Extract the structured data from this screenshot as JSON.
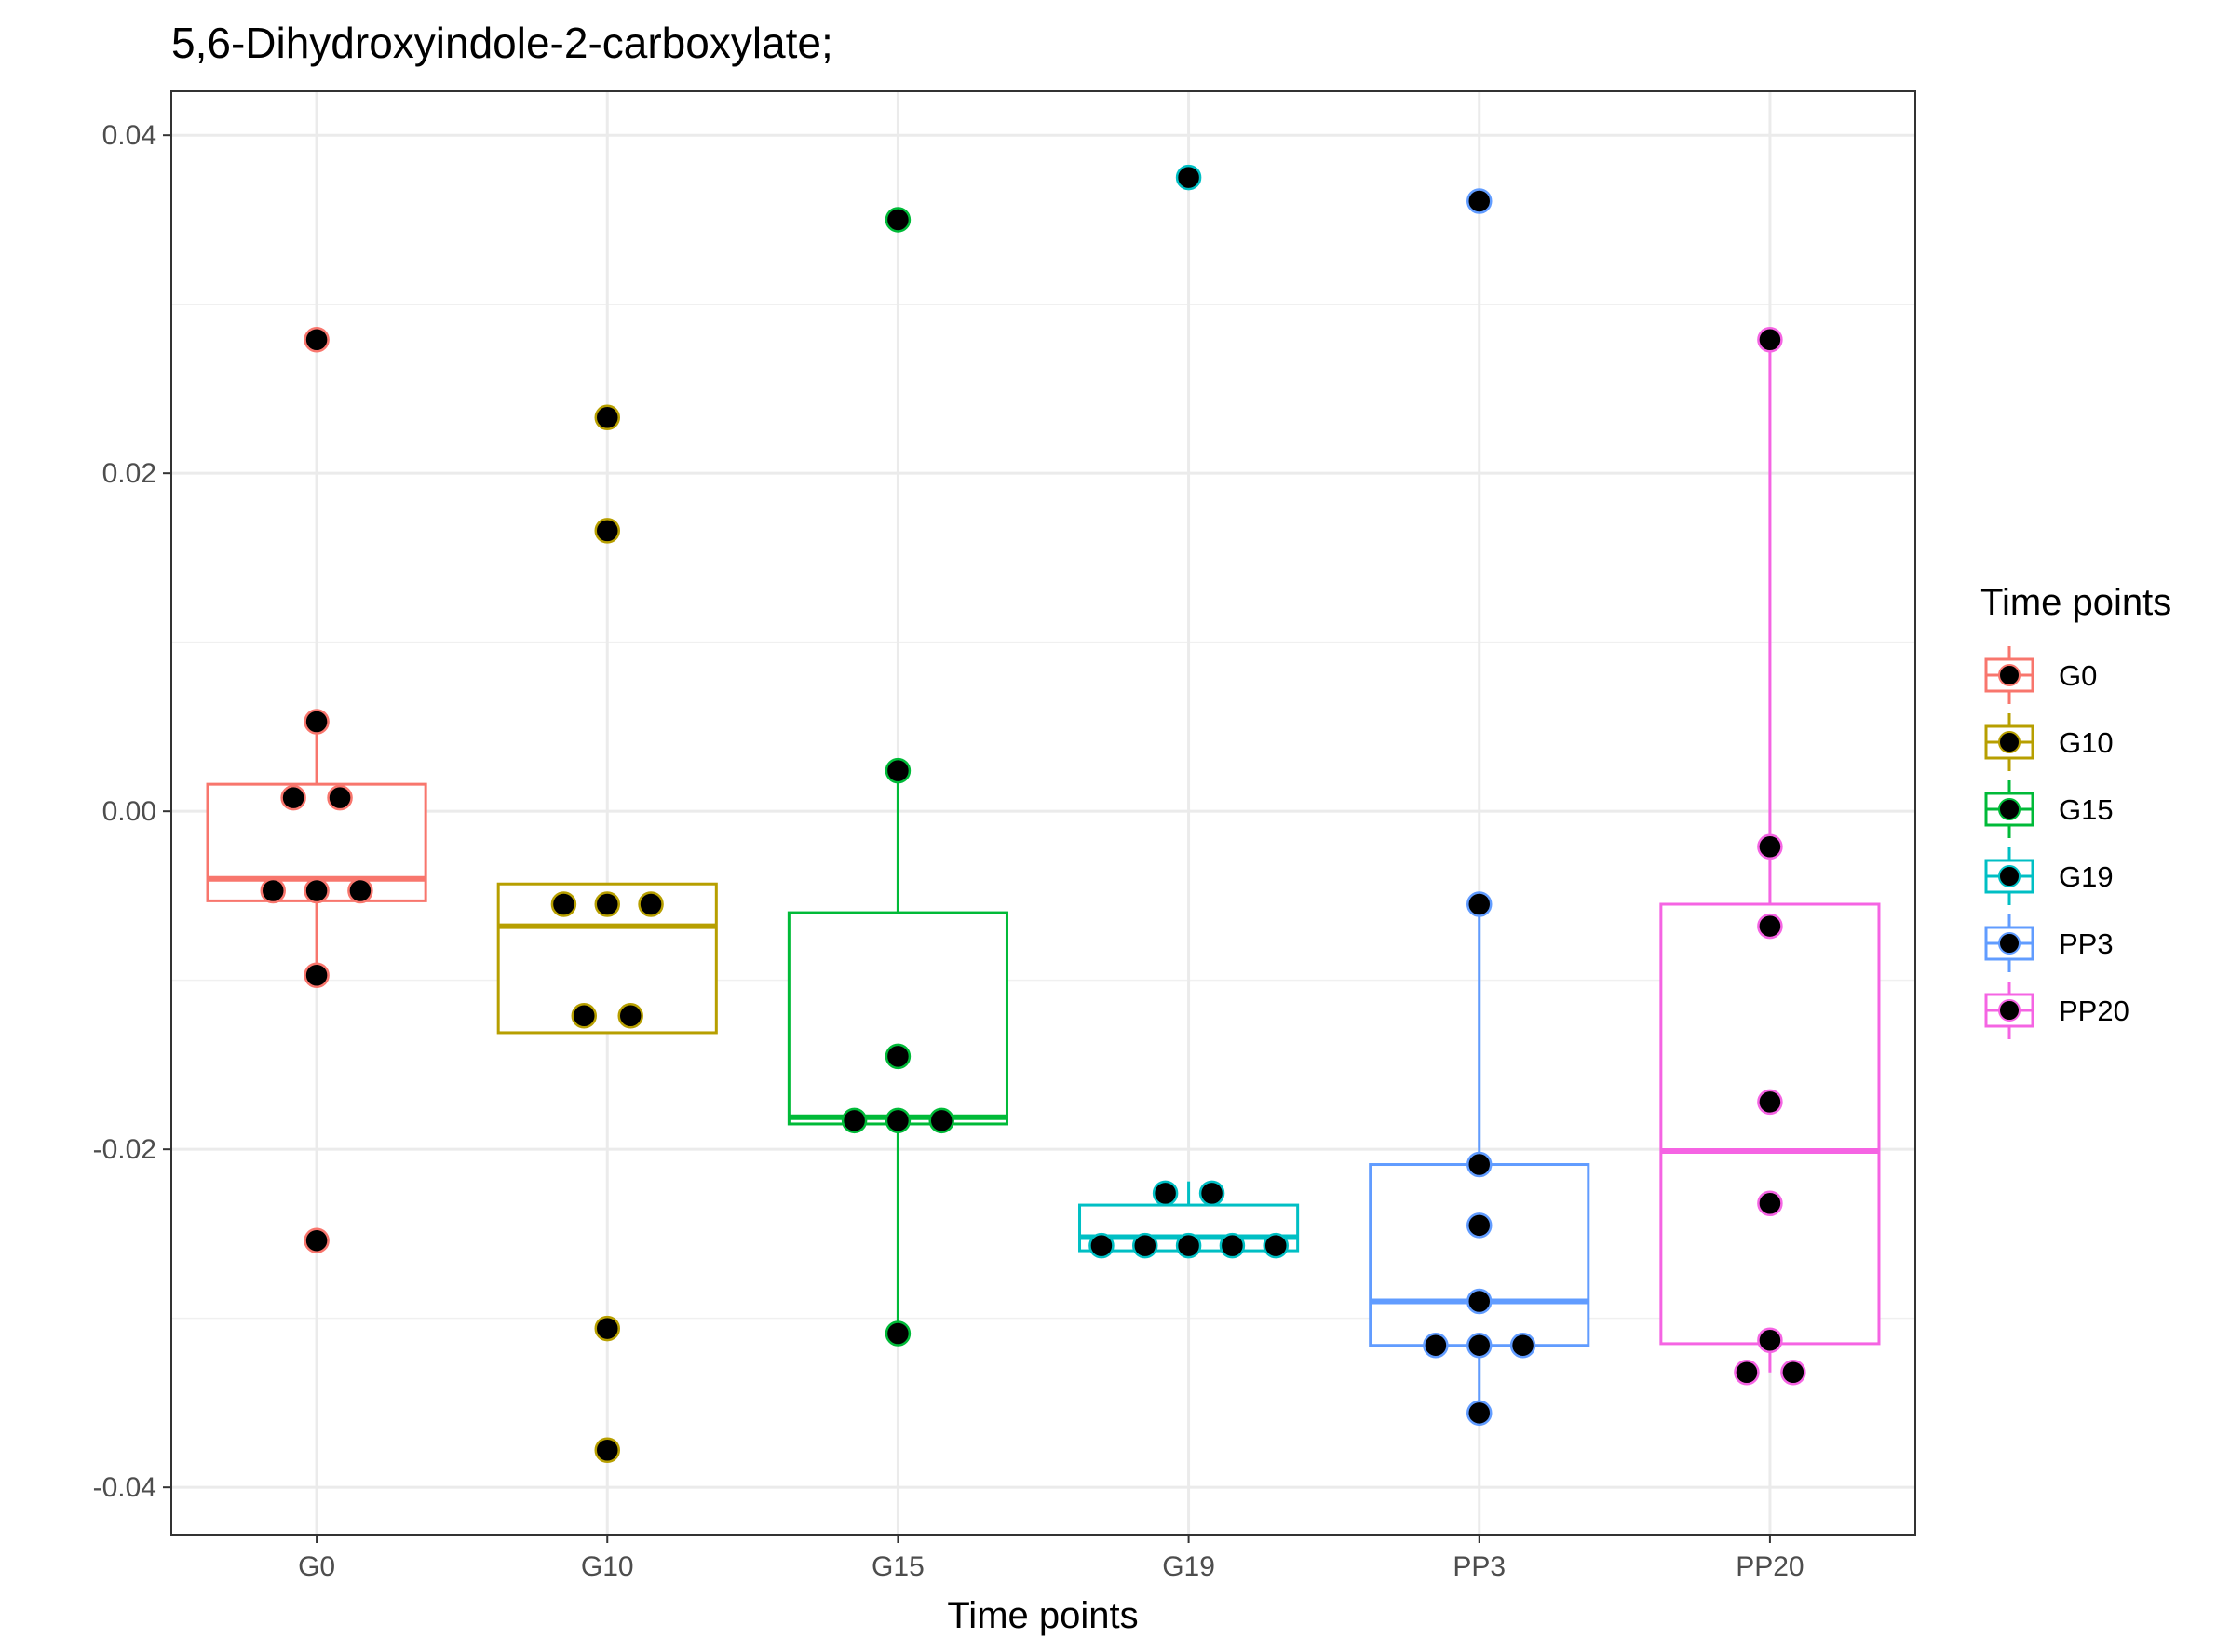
{
  "chart_data": {
    "type": "box",
    "title": "5,6-Dihydroxyindole-2-carboxylate;",
    "xlabel": "Time points",
    "ylabel": "",
    "categories": [
      "G0",
      "G10",
      "G15",
      "G19",
      "PP3",
      "PP20"
    ],
    "y_ticks": [
      0.04,
      0.02,
      0.0,
      -0.02,
      -0.04
    ],
    "y_tick_labels": [
      "0.04",
      "0.02",
      "0.00",
      "-0.02",
      "-0.04"
    ],
    "ylim": [
      -0.0428,
      0.0426
    ],
    "grid": true,
    "legend": {
      "title": "Time points",
      "position": "right",
      "entries": [
        "G0",
        "G10",
        "G15",
        "G19",
        "PP3",
        "PP20"
      ]
    },
    "colors": {
      "G0": "#F8766D",
      "G10": "#B79F00",
      "G15": "#00BA38",
      "G19": "#00BFC4",
      "PP3": "#619CFF",
      "PP20": "#F564E3",
      "points": "#000000"
    },
    "boxes": [
      {
        "category": "G0",
        "q1": -0.0053,
        "median": -0.004,
        "q3": 0.0016,
        "whisker_low": -0.0097,
        "whisker_high": 0.0053
      },
      {
        "category": "G10",
        "q1": -0.0131,
        "median": -0.0068,
        "q3": -0.0043,
        "whisker_low": -0.0131,
        "whisker_high": -0.0043
      },
      {
        "category": "G15",
        "q1": -0.0185,
        "median": -0.0181,
        "q3": -0.006,
        "whisker_low": -0.0309,
        "whisker_high": 0.0024
      },
      {
        "category": "G19",
        "q1": -0.026,
        "median": -0.0252,
        "q3": -0.0233,
        "whisker_low": -0.026,
        "whisker_high": -0.0219
      },
      {
        "category": "PP3",
        "q1": -0.0316,
        "median": -0.029,
        "q3": -0.0209,
        "whisker_low": -0.0356,
        "whisker_high": -0.0055
      },
      {
        "category": "PP20",
        "q1": -0.0315,
        "median": -0.0201,
        "q3": -0.0055,
        "whisker_low": -0.0332,
        "whisker_high": 0.0279
      }
    ],
    "series": [
      {
        "category": "G0",
        "points": [
          [
            0,
            0.0279
          ],
          [
            0,
            0.0053
          ],
          [
            -0.08,
            0.0008
          ],
          [
            0.08,
            0.0008
          ],
          [
            -0.15,
            -0.0047
          ],
          [
            0,
            -0.0047
          ],
          [
            0.15,
            -0.0047
          ],
          [
            0,
            -0.0097
          ],
          [
            0,
            -0.0254
          ]
        ]
      },
      {
        "category": "G10",
        "points": [
          [
            0,
            0.0233
          ],
          [
            0,
            0.0166
          ],
          [
            -0.15,
            -0.0055
          ],
          [
            0,
            -0.0055
          ],
          [
            0.15,
            -0.0055
          ],
          [
            -0.08,
            -0.0121
          ],
          [
            0.08,
            -0.0121
          ],
          [
            0,
            -0.0306
          ],
          [
            0,
            -0.0378
          ]
        ]
      },
      {
        "category": "G15",
        "points": [
          [
            0,
            0.035
          ],
          [
            0,
            0.0024
          ],
          [
            0,
            -0.0145
          ],
          [
            -0.15,
            -0.0183
          ],
          [
            0,
            -0.0183
          ],
          [
            0.15,
            -0.0183
          ],
          [
            0,
            -0.0309
          ]
        ]
      },
      {
        "category": "G19",
        "points": [
          [
            0,
            0.0375
          ],
          [
            -0.08,
            -0.0226
          ],
          [
            0.08,
            -0.0226
          ],
          [
            -0.3,
            -0.0257
          ],
          [
            -0.15,
            -0.0257
          ],
          [
            0,
            -0.0257
          ],
          [
            0.15,
            -0.0257
          ],
          [
            0.3,
            -0.0257
          ]
        ]
      },
      {
        "category": "PP3",
        "points": [
          [
            0,
            0.0361
          ],
          [
            0,
            -0.0055
          ],
          [
            0,
            -0.0209
          ],
          [
            0,
            -0.0245
          ],
          [
            0,
            -0.029
          ],
          [
            -0.15,
            -0.0316
          ],
          [
            0,
            -0.0316
          ],
          [
            0.15,
            -0.0316
          ],
          [
            0,
            -0.0356
          ]
        ]
      },
      {
        "category": "PP20",
        "points": [
          [
            0,
            0.0279
          ],
          [
            0,
            -0.0021
          ],
          [
            0,
            -0.0068
          ],
          [
            0,
            -0.0172
          ],
          [
            0,
            -0.0232
          ],
          [
            0,
            -0.0313
          ],
          [
            -0.08,
            -0.0332
          ],
          [
            0.08,
            -0.0332
          ]
        ]
      }
    ]
  }
}
